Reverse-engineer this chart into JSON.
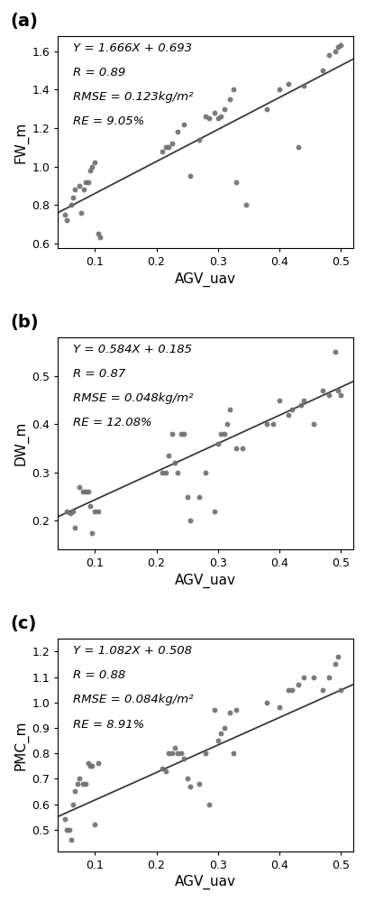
{
  "subplots": [
    {
      "label": "(a)",
      "xlabel": "AGV_uav",
      "ylabel": "FW_m",
      "equation": "Y = 1.666X + 0.693",
      "R": "R = 0.89",
      "RMSE": "RMSE = 0.123kg/m²",
      "RE": "RE = 9.05%",
      "slope": 1.666,
      "intercept": 0.693,
      "xlim": [
        0.04,
        0.52
      ],
      "ylim": [
        0.575,
        1.68
      ],
      "yticks": [
        0.6,
        0.8,
        1.0,
        1.2,
        1.4,
        1.6
      ],
      "xticks": [
        0.1,
        0.2,
        0.3,
        0.4,
        0.5
      ],
      "scatter_x": [
        0.052,
        0.055,
        0.062,
        0.065,
        0.068,
        0.075,
        0.078,
        0.082,
        0.085,
        0.09,
        0.092,
        0.095,
        0.1,
        0.105,
        0.108,
        0.21,
        0.215,
        0.22,
        0.225,
        0.235,
        0.245,
        0.255,
        0.27,
        0.28,
        0.285,
        0.295,
        0.3,
        0.305,
        0.31,
        0.32,
        0.325,
        0.33,
        0.345,
        0.38,
        0.4,
        0.415,
        0.43,
        0.44,
        0.47,
        0.48,
        0.49,
        0.495,
        0.5
      ],
      "scatter_y": [
        0.75,
        0.72,
        0.8,
        0.84,
        0.88,
        0.9,
        0.76,
        0.88,
        0.92,
        0.92,
        0.98,
        1.0,
        1.02,
        0.65,
        0.63,
        1.08,
        1.1,
        1.1,
        1.12,
        1.18,
        1.22,
        0.95,
        1.14,
        1.26,
        1.25,
        1.28,
        1.25,
        1.26,
        1.3,
        1.35,
        1.4,
        0.92,
        0.8,
        1.3,
        1.4,
        1.43,
        1.1,
        1.42,
        1.5,
        1.58,
        1.6,
        1.62,
        1.63
      ]
    },
    {
      "label": "(b)",
      "xlabel": "AGV_uav",
      "ylabel": "DW_m",
      "equation": "Y = 0.584X + 0.185",
      "R": "R = 0.87",
      "RMSE": "RMSE = 0.048kg/m²",
      "RE": "RE = 12.08%",
      "slope": 0.584,
      "intercept": 0.185,
      "xlim": [
        0.04,
        0.52
      ],
      "ylim": [
        0.14,
        0.58
      ],
      "yticks": [
        0.2,
        0.3,
        0.4,
        0.5
      ],
      "xticks": [
        0.1,
        0.2,
        0.3,
        0.4,
        0.5
      ],
      "scatter_x": [
        0.055,
        0.06,
        0.065,
        0.068,
        0.075,
        0.08,
        0.085,
        0.09,
        0.092,
        0.095,
        0.1,
        0.105,
        0.21,
        0.215,
        0.22,
        0.225,
        0.23,
        0.235,
        0.24,
        0.245,
        0.25,
        0.255,
        0.27,
        0.28,
        0.295,
        0.3,
        0.305,
        0.31,
        0.315,
        0.32,
        0.33,
        0.34,
        0.38,
        0.39,
        0.4,
        0.415,
        0.42,
        0.435,
        0.44,
        0.455,
        0.47,
        0.48,
        0.49,
        0.495,
        0.5
      ],
      "scatter_y": [
        0.22,
        0.215,
        0.22,
        0.185,
        0.27,
        0.26,
        0.26,
        0.26,
        0.23,
        0.175,
        0.22,
        0.22,
        0.3,
        0.3,
        0.335,
        0.38,
        0.32,
        0.3,
        0.38,
        0.38,
        0.25,
        0.2,
        0.25,
        0.3,
        0.22,
        0.36,
        0.38,
        0.38,
        0.4,
        0.43,
        0.35,
        0.35,
        0.4,
        0.4,
        0.45,
        0.42,
        0.43,
        0.44,
        0.45,
        0.4,
        0.47,
        0.46,
        0.55,
        0.47,
        0.46
      ]
    },
    {
      "label": "(c)",
      "xlabel": "AGV_uav",
      "ylabel": "PMC_m",
      "equation": "Y = 1.082X + 0.508",
      "R": "R = 0.88",
      "RMSE": "RMSE = 0.084kg/m²",
      "RE": "RE = 8.91%",
      "slope": 1.082,
      "intercept": 0.508,
      "xlim": [
        0.04,
        0.52
      ],
      "ylim": [
        0.415,
        1.25
      ],
      "yticks": [
        0.5,
        0.6,
        0.7,
        0.8,
        0.9,
        1.0,
        1.1,
        1.2
      ],
      "xticks": [
        0.1,
        0.2,
        0.3,
        0.4,
        0.5
      ],
      "scatter_x": [
        0.052,
        0.055,
        0.058,
        0.062,
        0.065,
        0.068,
        0.072,
        0.075,
        0.08,
        0.085,
        0.09,
        0.092,
        0.095,
        0.1,
        0.105,
        0.21,
        0.215,
        0.22,
        0.225,
        0.23,
        0.235,
        0.24,
        0.245,
        0.25,
        0.255,
        0.27,
        0.28,
        0.285,
        0.295,
        0.3,
        0.305,
        0.31,
        0.32,
        0.325,
        0.33,
        0.38,
        0.4,
        0.415,
        0.42,
        0.43,
        0.44,
        0.455,
        0.47,
        0.48,
        0.49,
        0.495,
        0.5
      ],
      "scatter_y": [
        0.54,
        0.5,
        0.5,
        0.46,
        0.6,
        0.65,
        0.68,
        0.7,
        0.68,
        0.68,
        0.76,
        0.75,
        0.75,
        0.52,
        0.76,
        0.74,
        0.73,
        0.8,
        0.8,
        0.82,
        0.8,
        0.8,
        0.78,
        0.7,
        0.67,
        0.68,
        0.8,
        0.6,
        0.97,
        0.85,
        0.88,
        0.9,
        0.96,
        0.8,
        0.97,
        1.0,
        0.98,
        1.05,
        1.05,
        1.07,
        1.1,
        1.1,
        1.05,
        1.1,
        1.15,
        1.18,
        1.05
      ]
    }
  ],
  "dot_color": "#6e6e6e",
  "line_color": "#3a3a3a",
  "dot_size": 18,
  "background_color": "#ffffff",
  "label_fontsize": 11,
  "tick_fontsize": 9,
  "annotation_fontsize": 9.5,
  "panel_fontsize": 14
}
